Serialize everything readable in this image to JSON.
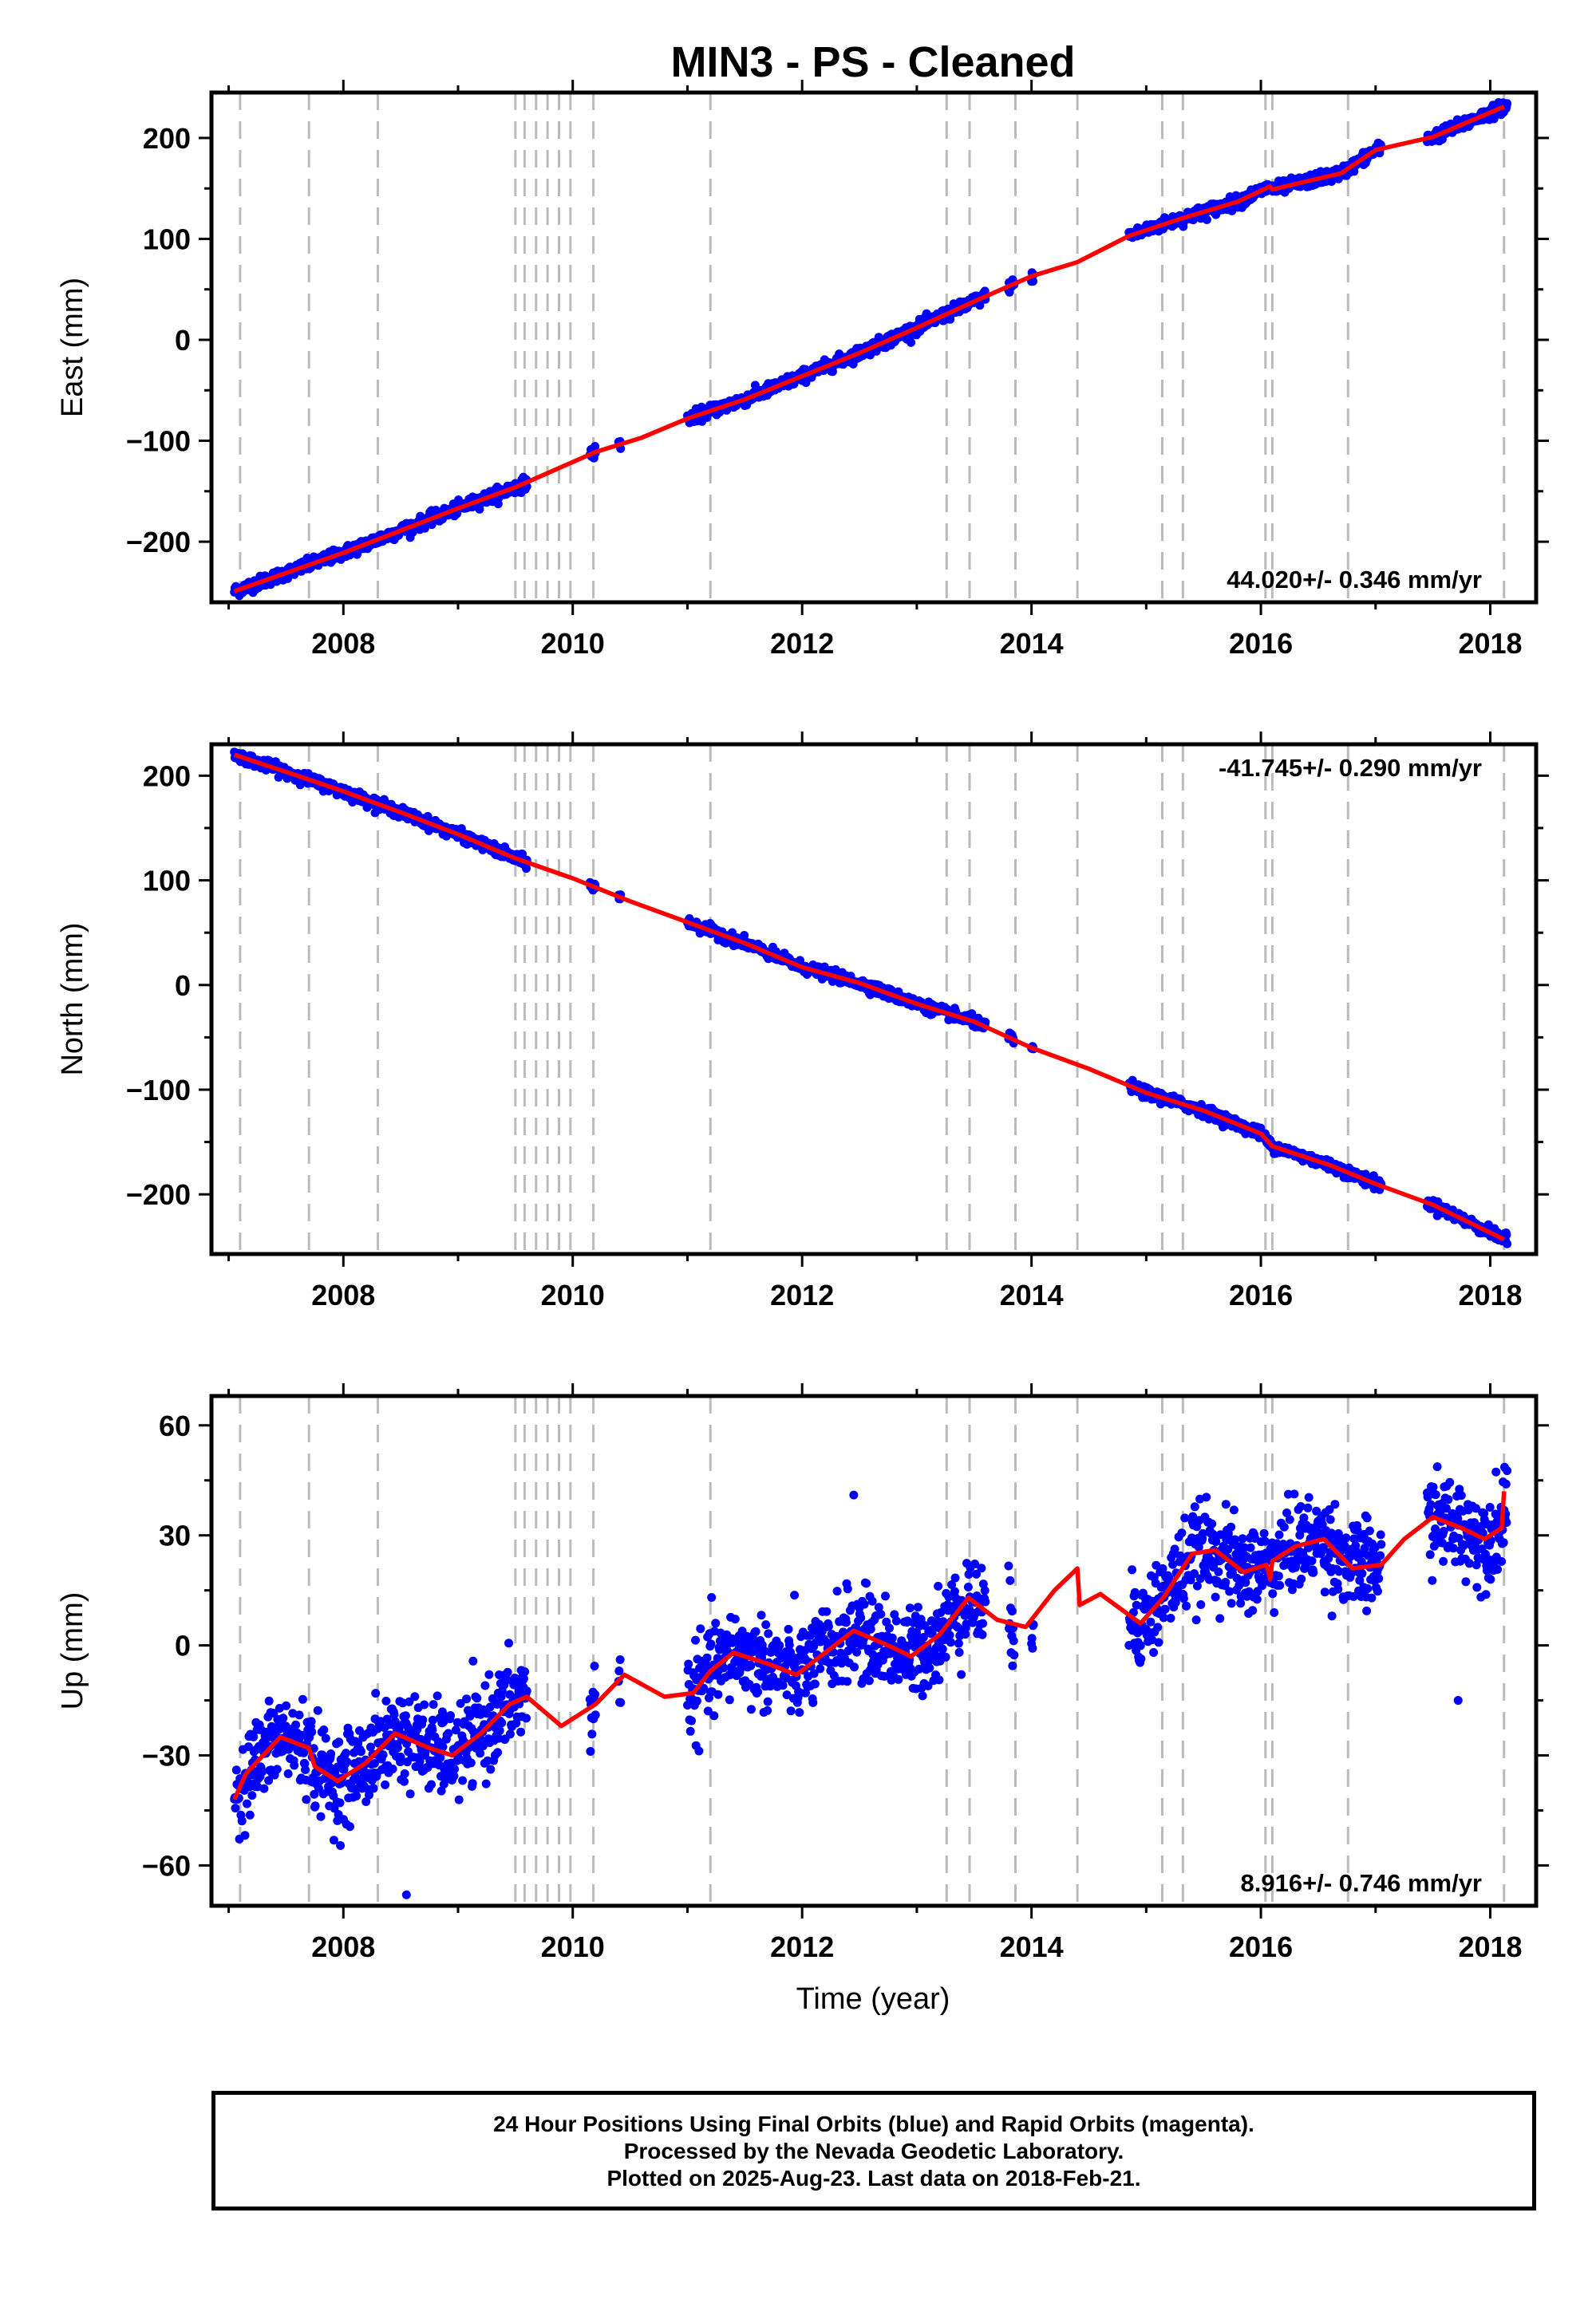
{
  "chart_data": {
    "title": "MIN3  - PS - Cleaned",
    "xlabel": "Time (year)",
    "xlim": [
      2006.85,
      2018.4
    ],
    "xticks": [
      2008,
      2010,
      2012,
      2014,
      2016,
      2018
    ],
    "event_lines": [
      2007.1,
      2007.7,
      2008.3,
      2009.5,
      2009.58,
      2009.68,
      2009.78,
      2009.88,
      2009.98,
      2010.18,
      2011.2,
      2013.26,
      2013.46,
      2013.86,
      2014.4,
      2015.14,
      2015.32,
      2016.04,
      2016.1,
      2016.76,
      2018.12
    ],
    "colors": {
      "final_orbits": "#0000ff",
      "model": "#ff0000",
      "event_lines": "#bbbbbb"
    },
    "panels": [
      {
        "type": "scatter",
        "ylabel": "East (mm)",
        "ylim": [
          -260,
          245
        ],
        "yticks": [
          -200,
          -100,
          0,
          100,
          200
        ],
        "ytick_labels": [
          "−200",
          "−100",
          "0",
          "100",
          "200"
        ],
        "rate_label": "44.020+/- 0.346 mm/yr",
        "rate_position": "bottom-right",
        "velocity": 44.02,
        "model_knots": [
          [
            2007.05,
            -249
          ],
          [
            2008.0,
            -211
          ],
          [
            2009.0,
            -167
          ],
          [
            2009.5,
            -146
          ],
          [
            2010.2,
            -111
          ],
          [
            2010.6,
            -97
          ],
          [
            2011.0,
            -78
          ],
          [
            2011.5,
            -59
          ],
          [
            2012.0,
            -36
          ],
          [
            2012.5,
            -13
          ],
          [
            2013.0,
            12
          ],
          [
            2013.5,
            38
          ],
          [
            2014.0,
            63
          ],
          [
            2014.4,
            77
          ],
          [
            2014.85,
            103
          ],
          [
            2015.3,
            120
          ],
          [
            2015.8,
            137
          ],
          [
            2016.08,
            152
          ],
          [
            2016.1,
            149
          ],
          [
            2016.7,
            165
          ],
          [
            2017.0,
            188
          ],
          [
            2017.5,
            201
          ],
          [
            2018.12,
            231
          ]
        ],
        "data_segments": [
          [
            2007.05,
            2009.6
          ],
          [
            2010.15,
            2010.2
          ],
          [
            2010.4,
            2010.42
          ],
          [
            2011.0,
            2013.6
          ],
          [
            2013.8,
            2013.85
          ],
          [
            2014.0,
            2014.02
          ],
          [
            2014.85,
            2017.05
          ],
          [
            2017.45,
            2018.15
          ]
        ],
        "noise_mm": 3.0
      },
      {
        "type": "scatter",
        "ylabel": "North (mm)",
        "ylim": [
          -257,
          230
        ],
        "yticks": [
          -200,
          -100,
          0,
          100,
          200
        ],
        "ytick_labels": [
          "−200",
          "−100",
          "0",
          "100",
          "200"
        ],
        "rate_label": "-41.745+/- 0.290 mm/yr",
        "rate_position": "top-right",
        "velocity": -41.745,
        "model_knots": [
          [
            2007.05,
            220
          ],
          [
            2007.6,
            200
          ],
          [
            2008.0,
            185
          ],
          [
            2008.5,
            165
          ],
          [
            2009.0,
            144
          ],
          [
            2009.5,
            121
          ],
          [
            2010.0,
            102
          ],
          [
            2010.5,
            80
          ],
          [
            2011.0,
            60
          ],
          [
            2011.5,
            40
          ],
          [
            2012.0,
            17
          ],
          [
            2012.5,
            2
          ],
          [
            2013.0,
            -18
          ],
          [
            2013.5,
            -35
          ],
          [
            2014.0,
            -60
          ],
          [
            2014.5,
            -80
          ],
          [
            2015.0,
            -103
          ],
          [
            2015.5,
            -120
          ],
          [
            2016.0,
            -142
          ],
          [
            2016.1,
            -154
          ],
          [
            2016.6,
            -172
          ],
          [
            2017.0,
            -190
          ],
          [
            2017.5,
            -210
          ],
          [
            2018.12,
            -243
          ]
        ],
        "data_segments": [
          [
            2007.05,
            2009.6
          ],
          [
            2010.15,
            2010.2
          ],
          [
            2010.4,
            2010.42
          ],
          [
            2011.0,
            2013.6
          ],
          [
            2013.8,
            2013.85
          ],
          [
            2014.0,
            2014.02
          ],
          [
            2014.85,
            2017.05
          ],
          [
            2017.45,
            2018.15
          ]
        ],
        "noise_mm": 2.5
      },
      {
        "type": "scatter",
        "ylabel": "Up (mm)",
        "ylim": [
          -71,
          68
        ],
        "yticks": [
          -60,
          -30,
          0,
          30,
          60
        ],
        "ytick_labels": [
          "−60",
          "−30",
          "0",
          "30",
          "60"
        ],
        "rate_label": "8.916+/- 0.746 mm/yr",
        "rate_position": "bottom-right",
        "velocity": 8.916,
        "model_knots": [
          [
            2007.05,
            -42
          ],
          [
            2007.15,
            -35
          ],
          [
            2007.45,
            -25
          ],
          [
            2007.7,
            -28
          ],
          [
            2007.75,
            -33
          ],
          [
            2007.95,
            -37
          ],
          [
            2008.2,
            -32
          ],
          [
            2008.45,
            -24
          ],
          [
            2008.75,
            -28
          ],
          [
            2008.95,
            -30
          ],
          [
            2009.2,
            -24
          ],
          [
            2009.45,
            -16
          ],
          [
            2009.6,
            -14
          ],
          [
            2009.9,
            -22
          ],
          [
            2010.2,
            -16
          ],
          [
            2010.45,
            -8
          ],
          [
            2010.8,
            -14
          ],
          [
            2011.05,
            -13
          ],
          [
            2011.2,
            -7
          ],
          [
            2011.4,
            -2
          ],
          [
            2011.7,
            -5
          ],
          [
            2011.95,
            -8
          ],
          [
            2012.2,
            -2
          ],
          [
            2012.45,
            4
          ],
          [
            2012.75,
            0
          ],
          [
            2012.95,
            -3
          ],
          [
            2013.2,
            3
          ],
          [
            2013.45,
            13
          ],
          [
            2013.7,
            7
          ],
          [
            2013.95,
            5
          ],
          [
            2014.2,
            15
          ],
          [
            2014.4,
            21
          ],
          [
            2014.42,
            11
          ],
          [
            2014.6,
            14
          ],
          [
            2014.95,
            6
          ],
          [
            2015.15,
            13
          ],
          [
            2015.4,
            25
          ],
          [
            2015.6,
            26
          ],
          [
            2015.85,
            20
          ],
          [
            2016.05,
            22
          ],
          [
            2016.08,
            18
          ],
          [
            2016.1,
            23
          ],
          [
            2016.3,
            27
          ],
          [
            2016.55,
            29
          ],
          [
            2016.8,
            21
          ],
          [
            2017.05,
            22
          ],
          [
            2017.25,
            29
          ],
          [
            2017.5,
            35
          ],
          [
            2017.75,
            32
          ],
          [
            2017.95,
            29
          ],
          [
            2018.1,
            32
          ],
          [
            2018.12,
            42
          ]
        ],
        "data_segments": [
          [
            2007.05,
            2009.6
          ],
          [
            2010.15,
            2010.2
          ],
          [
            2010.4,
            2010.42
          ],
          [
            2011.0,
            2013.6
          ],
          [
            2013.8,
            2013.85
          ],
          [
            2014.0,
            2014.02
          ],
          [
            2014.85,
            2017.05
          ],
          [
            2017.45,
            2018.15
          ]
        ],
        "noise_mm": 6.0,
        "outliers": [
          [
            2008.55,
            -68
          ],
          [
            2012.45,
            41
          ],
          [
            2017.72,
            -15
          ]
        ]
      }
    ]
  },
  "footer": {
    "line1": "24 Hour Positions Using Final Orbits (blue) and Rapid Orbits (magenta).",
    "line2": "Processed by the Nevada Geodetic Laboratory.",
    "line3": "Plotted on 2025-Aug-23. Last data on 2018-Feb-21."
  }
}
